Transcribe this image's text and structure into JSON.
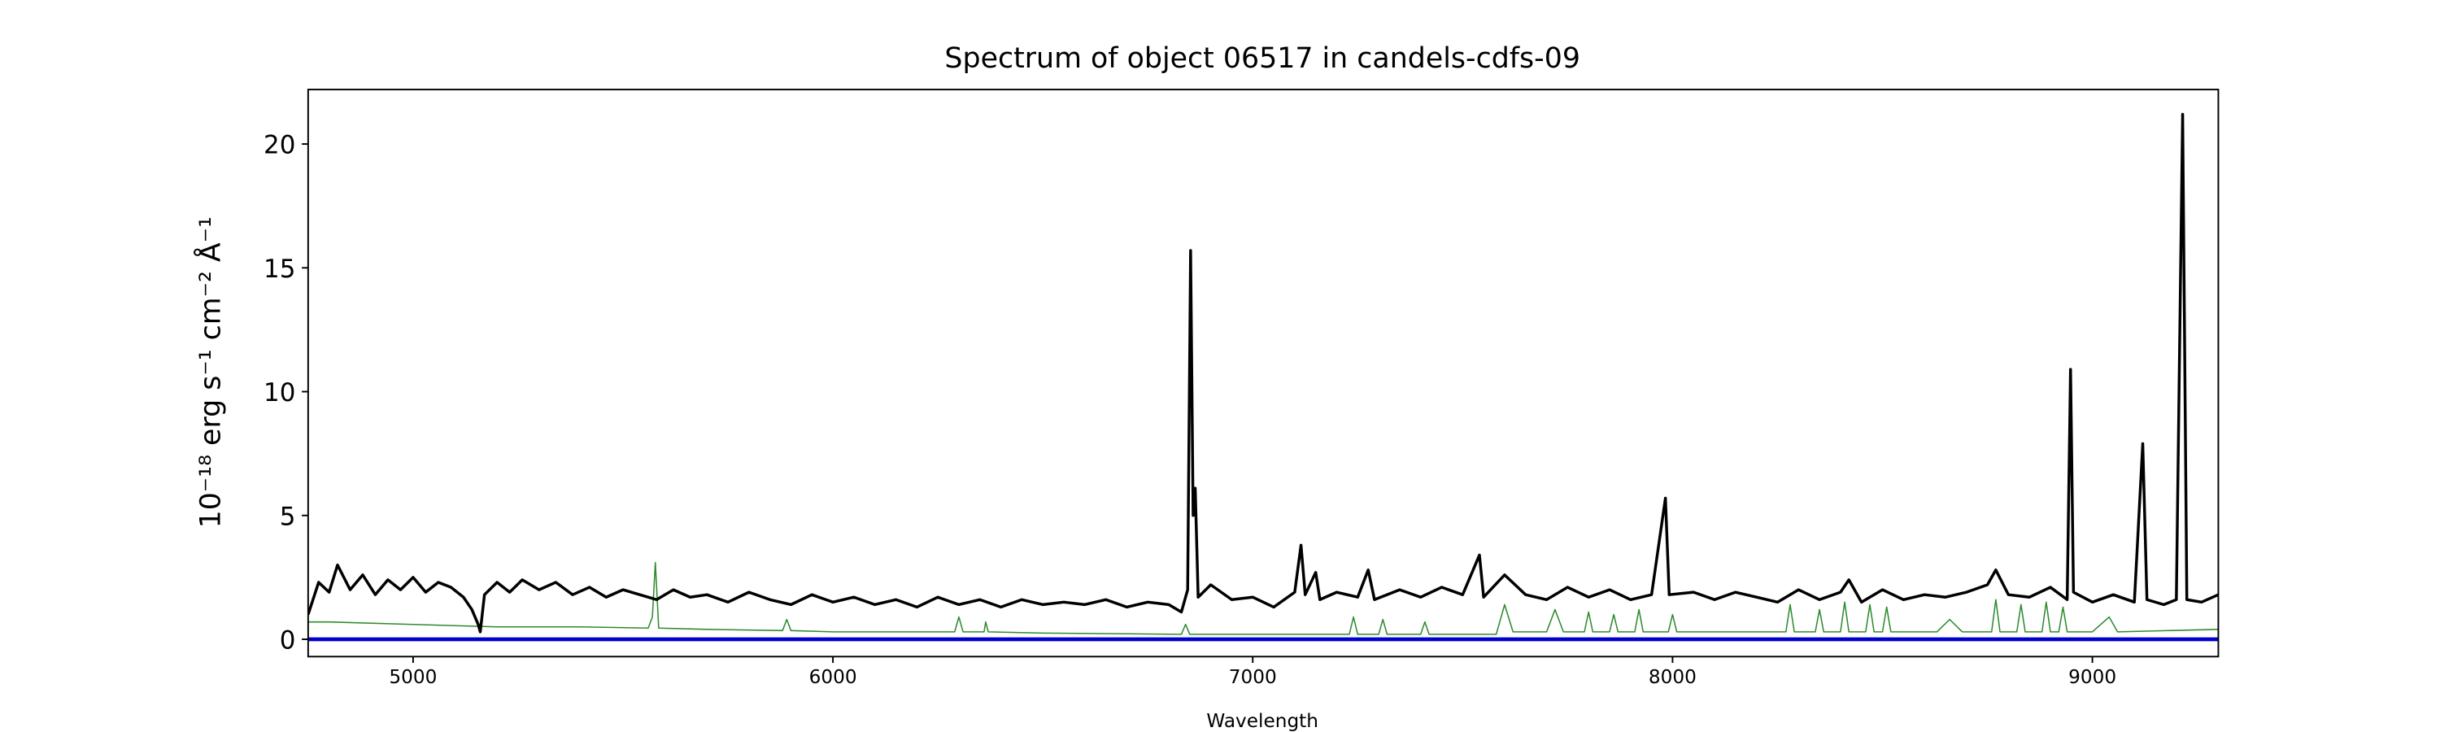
{
  "chart_data": {
    "type": "line",
    "title": "Spectrum of object 06517 in candels-cdfs-09",
    "xlabel": "Wavelength",
    "ylabel": "10⁻¹⁸ erg s⁻¹ cm⁻² Å⁻¹",
    "xlim": [
      4750,
      9300
    ],
    "ylim": [
      -0.7,
      22.2
    ],
    "xticks": [
      5000,
      6000,
      7000,
      8000,
      9000
    ],
    "yticks": [
      0,
      5,
      10,
      15,
      20
    ],
    "grid": false,
    "series": [
      {
        "color": "#2e8b2e",
        "width": 0.8,
        "x": [
          4750,
          4800,
          5000,
          5200,
          5400,
          5560,
          5570,
          5577,
          5585,
          5700,
          5880,
          5890,
          5900,
          6000,
          6290,
          6300,
          6310,
          6360,
          6364,
          6370,
          6500,
          6830,
          6840,
          6850,
          6950,
          7230,
          7240,
          7250,
          7300,
          7310,
          7320,
          7400,
          7410,
          7420,
          7580,
          7600,
          7620,
          7700,
          7720,
          7740,
          7790,
          7800,
          7810,
          7850,
          7860,
          7870,
          7910,
          7920,
          7930,
          7990,
          8000,
          8010,
          8270,
          8280,
          8290,
          8340,
          8350,
          8360,
          8400,
          8410,
          8420,
          8460,
          8470,
          8480,
          8500,
          8510,
          8520,
          8630,
          8660,
          8690,
          8760,
          8770,
          8780,
          8820,
          8830,
          8840,
          8880,
          8890,
          8900,
          8920,
          8930,
          8940,
          9000,
          9040,
          9060,
          9300
        ],
        "values": [
          0.7,
          0.7,
          0.6,
          0.5,
          0.5,
          0.45,
          0.9,
          3.1,
          0.45,
          0.4,
          0.35,
          0.8,
          0.35,
          0.3,
          0.3,
          0.9,
          0.3,
          0.3,
          0.7,
          0.3,
          0.25,
          0.2,
          0.6,
          0.2,
          0.2,
          0.2,
          0.9,
          0.2,
          0.2,
          0.8,
          0.2,
          0.2,
          0.7,
          0.2,
          0.2,
          1.4,
          0.3,
          0.3,
          1.2,
          0.3,
          0.3,
          1.1,
          0.3,
          0.3,
          1.0,
          0.3,
          0.3,
          1.2,
          0.3,
          0.3,
          1.0,
          0.3,
          0.3,
          1.4,
          0.3,
          0.3,
          1.2,
          0.3,
          0.3,
          1.5,
          0.3,
          0.3,
          1.4,
          0.3,
          0.3,
          1.3,
          0.3,
          0.3,
          0.8,
          0.3,
          0.3,
          1.6,
          0.3,
          0.3,
          1.4,
          0.3,
          0.3,
          1.5,
          0.3,
          0.3,
          1.3,
          0.3,
          0.3,
          0.9,
          0.3,
          0.4
        ]
      },
      {
        "color": "#000000",
        "width": 1.8,
        "x": [
          4750,
          4775,
          4800,
          4820,
          4850,
          4880,
          4910,
          4940,
          4970,
          5000,
          5030,
          5060,
          5090,
          5120,
          5140,
          5155,
          5160,
          5170,
          5200,
          5230,
          5260,
          5300,
          5340,
          5380,
          5420,
          5460,
          5500,
          5540,
          5580,
          5620,
          5660,
          5700,
          5750,
          5800,
          5850,
          5900,
          5950,
          6000,
          6050,
          6100,
          6150,
          6200,
          6250,
          6300,
          6350,
          6400,
          6450,
          6500,
          6550,
          6600,
          6650,
          6700,
          6750,
          6800,
          6830,
          6845,
          6852,
          6858,
          6863,
          6870,
          6900,
          6950,
          7000,
          7050,
          7100,
          7115,
          7125,
          7150,
          7160,
          7200,
          7250,
          7275,
          7290,
          7350,
          7400,
          7450,
          7500,
          7540,
          7550,
          7600,
          7650,
          7700,
          7750,
          7800,
          7850,
          7900,
          7950,
          7983,
          7992,
          8050,
          8100,
          8150,
          8200,
          8250,
          8300,
          8350,
          8400,
          8420,
          8450,
          8500,
          8550,
          8600,
          8650,
          8700,
          8750,
          8770,
          8800,
          8850,
          8900,
          8940,
          8948,
          8955,
          9000,
          9050,
          9100,
          9120,
          9130,
          9170,
          9200,
          9215,
          9225,
          9260,
          9300
        ],
        "values": [
          1.0,
          2.3,
          1.9,
          3.0,
          2.0,
          2.6,
          1.8,
          2.4,
          2.0,
          2.5,
          1.9,
          2.3,
          2.1,
          1.7,
          1.2,
          0.6,
          0.3,
          1.8,
          2.3,
          1.9,
          2.4,
          2.0,
          2.3,
          1.8,
          2.1,
          1.7,
          2.0,
          1.8,
          1.6,
          2.0,
          1.7,
          1.8,
          1.5,
          1.9,
          1.6,
          1.4,
          1.8,
          1.5,
          1.7,
          1.4,
          1.6,
          1.3,
          1.7,
          1.4,
          1.6,
          1.3,
          1.6,
          1.4,
          1.5,
          1.4,
          1.6,
          1.3,
          1.5,
          1.4,
          1.1,
          2.0,
          15.7,
          5.0,
          6.1,
          1.7,
          2.2,
          1.6,
          1.7,
          1.3,
          1.9,
          3.8,
          1.8,
          2.7,
          1.6,
          1.9,
          1.7,
          2.8,
          1.6,
          2.0,
          1.7,
          2.1,
          1.8,
          3.4,
          1.7,
          2.6,
          1.8,
          1.6,
          2.1,
          1.7,
          2.0,
          1.6,
          1.8,
          5.7,
          1.8,
          1.9,
          1.6,
          1.9,
          1.7,
          1.5,
          2.0,
          1.6,
          1.9,
          2.4,
          1.5,
          2.0,
          1.6,
          1.8,
          1.7,
          1.9,
          2.2,
          2.8,
          1.8,
          1.7,
          2.1,
          1.6,
          10.9,
          1.9,
          1.5,
          1.8,
          1.5,
          7.9,
          1.6,
          1.4,
          1.6,
          21.2,
          1.6,
          1.5,
          1.8
        ]
      },
      {
        "color": "#0000cc",
        "width": 2.5,
        "x": [
          4750,
          9300
        ],
        "values": [
          0,
          0
        ]
      }
    ]
  }
}
